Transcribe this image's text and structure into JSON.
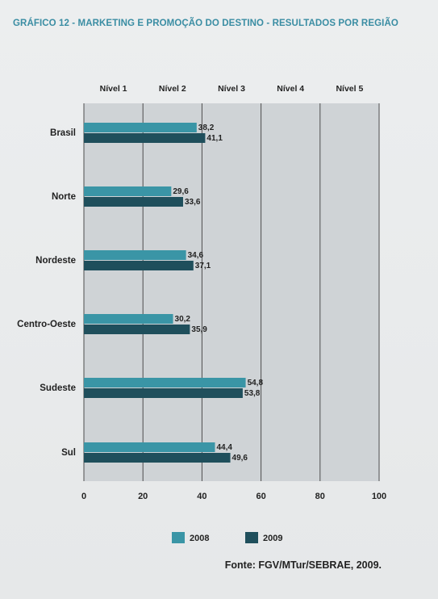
{
  "title": "GRÁFICO 12 - MARKETING E PROMOÇÃO DO DESTINO - RESULTADOS POR REGIÃO",
  "source": "Fonte: FGV/MTur/SEBRAE, 2009.",
  "colors": {
    "series_2008": "#3a95a6",
    "series_2009": "#1f4f5c",
    "plot_bg": "#cfd3d6",
    "band_bg": "#d6dadd",
    "grid": "#4d4d4d"
  },
  "chart_data": {
    "type": "bar",
    "orientation": "horizontal",
    "title": "GRÁFICO 12 - MARKETING E PROMOÇÃO DO DESTINO - RESULTADOS POR REGIÃO",
    "categories": [
      "Brasil",
      "Norte",
      "Nordeste",
      "Centro-Oeste",
      "Sudeste",
      "Sul"
    ],
    "series": [
      {
        "name": "2008",
        "values": [
          38.2,
          29.6,
          34.6,
          30.2,
          54.8,
          44.4
        ],
        "labels": [
          "38,2",
          "29,6",
          "34,6",
          "30,2",
          "54,8",
          "44,4"
        ]
      },
      {
        "name": "2009",
        "values": [
          41.1,
          33.6,
          37.1,
          35.9,
          53.8,
          49.6
        ],
        "labels": [
          "41,1",
          "33,6",
          "37,1",
          "35,9",
          "53,8",
          "49,6"
        ]
      }
    ],
    "xlim": [
      0,
      100
    ],
    "x_ticks": [
      0,
      20,
      40,
      60,
      80,
      100
    ],
    "x_tick_labels": [
      "0",
      "20",
      "40",
      "60",
      "80",
      "100"
    ],
    "level_labels": [
      "Nível 1",
      "Nível 2",
      "Nível 3",
      "Nível 4",
      "Nível 5"
    ],
    "grid": true,
    "legend_position": "bottom"
  }
}
